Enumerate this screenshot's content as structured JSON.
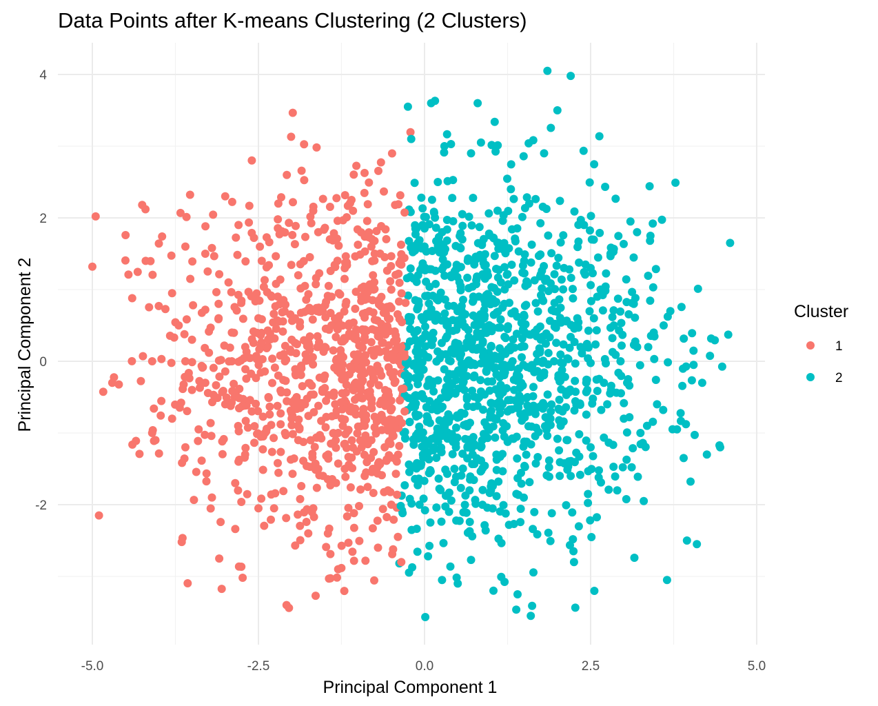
{
  "chart_data": {
    "type": "scatter",
    "title": "Data Points after K-means Clustering (2 Clusters)",
    "xlabel": "Principal Component 1",
    "ylabel": "Principal Component 2",
    "xlim": [
      -5.2,
      5.0
    ],
    "ylim": [
      -3.9,
      4.2
    ],
    "x_ticks": [
      -5.0,
      -2.5,
      0.0,
      2.5,
      5.0
    ],
    "x_tick_labels": [
      "-5.0",
      "-2.5",
      "0.0",
      "2.5",
      "5.0"
    ],
    "y_ticks": [
      -2,
      0,
      2,
      4
    ],
    "y_tick_labels": [
      "-2",
      "0",
      "2",
      "4"
    ],
    "grid": true,
    "legend": {
      "title": "Cluster",
      "position": "right",
      "entries": [
        {
          "label": "1",
          "color": "#F8766D"
        },
        {
          "label": "2",
          "color": "#00BFC4"
        }
      ]
    },
    "point_count_estimate": 2000,
    "boundary_note_x": -0.3,
    "series": [
      {
        "name": "1",
        "color": "#F8766D",
        "x": [
          -5.0,
          -4.95,
          -4.9,
          -4.7,
          -4.5,
          -4.4,
          -4.25,
          -4.2,
          -4.1,
          -4.05,
          -4.0,
          -3.95,
          -3.8,
          -3.7,
          -3.6,
          -3.6,
          -3.5,
          -3.4,
          -3.3,
          -3.2,
          -3.1,
          -3.0,
          -3.0,
          -2.95,
          -2.9,
          -2.85,
          -2.8,
          -2.7,
          -2.6,
          -2.55,
          -2.5,
          -2.45,
          -2.35,
          -2.3,
          -2.2,
          -2.1,
          -2.0,
          -1.9,
          -1.8,
          -1.75,
          -1.7,
          -1.6,
          -1.5,
          -1.4,
          -1.3,
          -1.2,
          -1.1,
          -1.0,
          -0.9,
          -0.8,
          -0.7,
          -0.6,
          -0.55,
          -0.5,
          -0.45,
          -0.4,
          -0.35,
          -0.3,
          -3.5,
          -2.0,
          -1.5,
          -1.0,
          -0.6,
          -2.6,
          -3.1,
          -1.8,
          -1.25,
          -0.95,
          -0.7,
          -0.5,
          -2.2,
          -1.3,
          -0.8,
          -3.6,
          -2.8,
          -1.9,
          -1.4,
          -0.9,
          -0.55,
          -0.35,
          -2.5,
          -1.6,
          -1.1,
          -4.1,
          -3.8,
          -3.3,
          -2.9,
          -2.4,
          -1.95,
          -1.45,
          -0.75,
          -2.1,
          -1.2,
          -0.65
        ],
        "y": [
          1.32,
          2.02,
          -2.15,
          -0.3,
          1.76,
          0.88,
          2.18,
          2.12,
          0.0,
          -1.1,
          0.77,
          1.74,
          0.95,
          0.5,
          1.6,
          0.0,
          0.3,
          -0.95,
          1.5,
          -1.9,
          0.8,
          2.3,
          -0.6,
          1.1,
          0.0,
          -1.7,
          1.9,
          -1.3,
          2.8,
          0.4,
          -2.05,
          1.4,
          -0.5,
          0.9,
          2.2,
          -1.0,
          0.3,
          1.2,
          -0.6,
          -2.4,
          0.7,
          1.8,
          -0.2,
          0.5,
          -2.9,
          -1.5,
          2.25,
          0.1,
          -0.9,
          1.6,
          -2.6,
          0.45,
          -1.8,
          1.0,
          -0.3,
          -2.45,
          0.2,
          -0.7,
          -0.4,
          -0.8,
          0.2,
          -0.5,
          -1.2,
          -0.7,
          0.6,
          1.05,
          -0.1,
          0.9,
          0.35,
          -2.0,
          -0.2,
          -1.0,
          -1.1,
          -1.2,
          -1.4,
          -1.1,
          0.9,
          -1.6,
          0.6,
          -2.8,
          0.6,
          -1.5,
          -0.7,
          -1.0,
          -0.8,
          -0.3,
          0.4,
          -1.0,
          0.6,
          -1.3,
          1.5,
          0.0,
          0.3,
          -0.2
        ]
      },
      {
        "name": "2",
        "color": "#00BFC4",
        "x": [
          -0.25,
          -0.2,
          -0.15,
          -0.1,
          0.0,
          0.1,
          0.2,
          0.3,
          0.4,
          0.5,
          0.6,
          0.7,
          0.8,
          0.85,
          0.9,
          1.0,
          1.1,
          1.2,
          1.3,
          1.4,
          1.5,
          1.6,
          1.7,
          1.8,
          1.85,
          1.9,
          2.0,
          2.1,
          2.2,
          2.25,
          2.3,
          2.4,
          2.5,
          2.6,
          2.7,
          2.8,
          2.9,
          3.0,
          3.1,
          3.2,
          3.3,
          3.4,
          3.5,
          3.6,
          3.65,
          3.7,
          3.8,
          3.9,
          3.95,
          4.05,
          4.1,
          4.25,
          4.45,
          4.6,
          0.15,
          0.55,
          0.95,
          1.35,
          1.75,
          2.15,
          2.55,
          2.95,
          3.35,
          0.35,
          0.75,
          1.15,
          1.55,
          1.95,
          2.35,
          2.75,
          3.15,
          0.45,
          1.05,
          1.65,
          2.05,
          2.65,
          3.05,
          3.45,
          0.25,
          0.65,
          1.25,
          1.45,
          2.45,
          2.85,
          3.25,
          0.05,
          0.85,
          1.95,
          2.2,
          2.5,
          1.25,
          0.7
        ],
        "y": [
          3.55,
          3.1,
          0.4,
          -1.0,
          1.6,
          3.6,
          2.5,
          3.0,
          1.2,
          -3.1,
          -0.4,
          2.9,
          3.6,
          3.05,
          0.6,
          -1.8,
          2.1,
          0.8,
          2.4,
          -3.25,
          1.4,
          -3.55,
          0.0,
          2.9,
          4.05,
          -0.7,
          3.5,
          1.3,
          3.98,
          -2.8,
          0.6,
          1.9,
          -1.2,
          0.9,
          -0.3,
          1.5,
          -1.8,
          -0.8,
          1.95,
          0.2,
          -1.95,
          1.75,
          -0.6,
          0.5,
          -3.05,
          0.7,
          -0.95,
          -1.35,
          -2.5,
          -0.05,
          -2.55,
          -1.3,
          -1.2,
          1.65,
          -0.6,
          0.1,
          0.9,
          -0.4,
          0.3,
          -1.1,
          0.6,
          0.0,
          -0.9,
          0.5,
          -0.2,
          1.1,
          -0.5,
          0.7,
          0.2,
          -0.6,
          0.8,
          -1.5,
          -0.1,
          0.4,
          -0.9,
          1.0,
          -0.3,
          0.4,
          0.1,
          1.4,
          -0.7,
          0.2,
          -0.4,
          0.5,
          -1.0,
          -0.8,
          -1.2,
          0.0,
          -1.6,
          1.3,
          0.45,
          -0.05
        ]
      }
    ]
  }
}
